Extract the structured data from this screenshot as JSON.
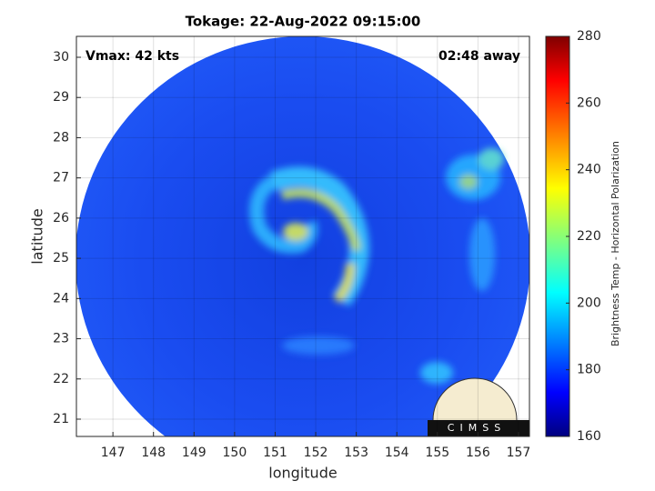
{
  "chart_data": {
    "type": "image",
    "title": "Tokage: 22-Aug-2022 09:15:00",
    "xlabel": "longitude",
    "ylabel": "latitude",
    "annotations": [
      "Vmax: 42 kts",
      "02:48 away"
    ],
    "xlim": [
      146.1,
      157.27
    ],
    "xticks": [
      147,
      148,
      149,
      150,
      151,
      152,
      153,
      154,
      155,
      156,
      157
    ],
    "ylim": [
      20.57,
      30.52
    ],
    "yticks": [
      21,
      22,
      23,
      24,
      25,
      26,
      27,
      28,
      29,
      30
    ],
    "grid": true,
    "colorbar": {
      "label": "Brightness Temp - Horizontal Polarization",
      "colormap": "jet",
      "lim": [
        160,
        280
      ],
      "ticks": [
        160,
        180,
        200,
        220,
        240,
        260,
        280
      ]
    }
  },
  "logo": "CIMSS"
}
